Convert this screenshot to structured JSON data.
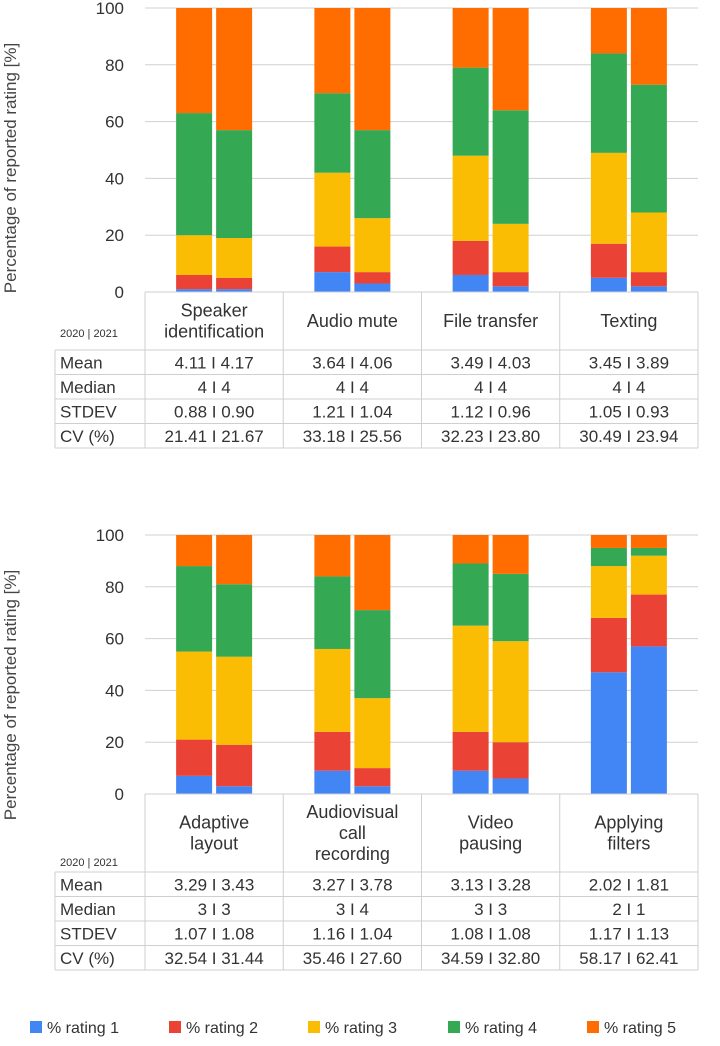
{
  "y_axis_label": "Percentage of reported rating [%]",
  "year_label": "2020 | 2021",
  "colors": {
    "rating1": "#4285F4",
    "rating2": "#EA4335",
    "rating3": "#FBBC04",
    "rating4": "#34A853",
    "rating5": "#FF6D01"
  },
  "legend": [
    "% rating 1",
    "% rating 2",
    "% rating 3",
    "% rating 4",
    "% rating 5"
  ],
  "row_labels": [
    "Mean",
    "Median",
    "STDEV",
    "CV (%)"
  ],
  "chart_data": [
    {
      "type": "bar",
      "stacked": true,
      "ylabel": "Percentage of reported rating [%]",
      "ylim": [
        0,
        100
      ],
      "yticks": [
        0,
        20,
        40,
        60,
        80,
        100
      ],
      "series_names": [
        "% rating 1",
        "% rating 2",
        "% rating 3",
        "% rating 4",
        "% rating 5"
      ],
      "groups": [
        {
          "category_lines": [
            "Speaker",
            "identification"
          ],
          "bars": [
            {
              "year": "2020",
              "values": [
                1,
                5,
                14,
                43,
                37
              ]
            },
            {
              "year": "2021",
              "values": [
                1,
                4,
                14,
                38,
                43
              ]
            }
          ],
          "stats": {
            "Mean": "4.11 I 4.17",
            "Median": "4 I 4",
            "STDEV": "0.88 I 0.90",
            "CV (%)": "21.41 I 21.67"
          }
        },
        {
          "category_lines": [
            "Audio mute"
          ],
          "bars": [
            {
              "year": "2020",
              "values": [
                7,
                9,
                26,
                28,
                30
              ]
            },
            {
              "year": "2021",
              "values": [
                3,
                4,
                19,
                31,
                43
              ]
            }
          ],
          "stats": {
            "Mean": "3.64 I 4.06",
            "Median": "4 I 4",
            "STDEV": "1.21 I 1.04",
            "CV (%)": "33.18 I 25.56"
          }
        },
        {
          "category_lines": [
            "File transfer"
          ],
          "bars": [
            {
              "year": "2020",
              "values": [
                6,
                12,
                30,
                31,
                21
              ]
            },
            {
              "year": "2021",
              "values": [
                2,
                5,
                17,
                40,
                36
              ]
            }
          ],
          "stats": {
            "Mean": "3.49 I 4.03",
            "Median": "4 I 4",
            "STDEV": "1.12 I 0.96",
            "CV (%)": "32.23 I 23.80"
          }
        },
        {
          "category_lines": [
            "Texting"
          ],
          "bars": [
            {
              "year": "2020",
              "values": [
                5,
                12,
                32,
                35,
                16
              ]
            },
            {
              "year": "2021",
              "values": [
                2,
                5,
                21,
                45,
                27
              ]
            }
          ],
          "stats": {
            "Mean": "3.45 I 3.89",
            "Median": "4 I 4",
            "STDEV": "1.05 I 0.93",
            "CV (%)": "30.49 I 23.94"
          }
        }
      ]
    },
    {
      "type": "bar",
      "stacked": true,
      "ylabel": "Percentage of reported rating [%]",
      "ylim": [
        0,
        100
      ],
      "yticks": [
        0,
        20,
        40,
        60,
        80,
        100
      ],
      "series_names": [
        "% rating 1",
        "% rating 2",
        "% rating 3",
        "% rating 4",
        "% rating 5"
      ],
      "groups": [
        {
          "category_lines": [
            "Adaptive",
            "layout"
          ],
          "bars": [
            {
              "year": "2020",
              "values": [
                7,
                14,
                34,
                33,
                12
              ]
            },
            {
              "year": "2021",
              "values": [
                3,
                16,
                34,
                28,
                19
              ]
            }
          ],
          "stats": {
            "Mean": "3.29 I 3.43",
            "Median": "3 I 3",
            "STDEV": "1.07 I 1.08",
            "CV (%)": "32.54 I 31.44"
          }
        },
        {
          "category_lines": [
            "Audiovisual",
            "call",
            "recording"
          ],
          "bars": [
            {
              "year": "2020",
              "values": [
                9,
                15,
                32,
                28,
                16
              ]
            },
            {
              "year": "2021",
              "values": [
                3,
                7,
                27,
                34,
                29
              ]
            }
          ],
          "stats": {
            "Mean": "3.27 I 3.78",
            "Median": "3 I 4",
            "STDEV": "1.16 I 1.04",
            "CV (%)": "35.46 I 27.60"
          }
        },
        {
          "category_lines": [
            "Video",
            "pausing"
          ],
          "bars": [
            {
              "year": "2020",
              "values": [
                9,
                15,
                41,
                24,
                11
              ]
            },
            {
              "year": "2021",
              "values": [
                6,
                14,
                39,
                26,
                15
              ]
            }
          ],
          "stats": {
            "Mean": "3.13 I 3.28",
            "Median": "3 I 3",
            "STDEV": "1.08 I 1.08",
            "CV (%)": "34.59 I 32.80"
          }
        },
        {
          "category_lines": [
            "Applying",
            "filters"
          ],
          "bars": [
            {
              "year": "2020",
              "values": [
                47,
                21,
                20,
                7,
                5
              ]
            },
            {
              "year": "2021",
              "values": [
                57,
                20,
                15,
                3,
                5
              ]
            }
          ],
          "stats": {
            "Mean": "2.02 I 1.81",
            "Median": "2 I 1",
            "STDEV": "1.17 I 1.13",
            "CV (%)": "58.17 I 62.41"
          }
        }
      ]
    }
  ]
}
